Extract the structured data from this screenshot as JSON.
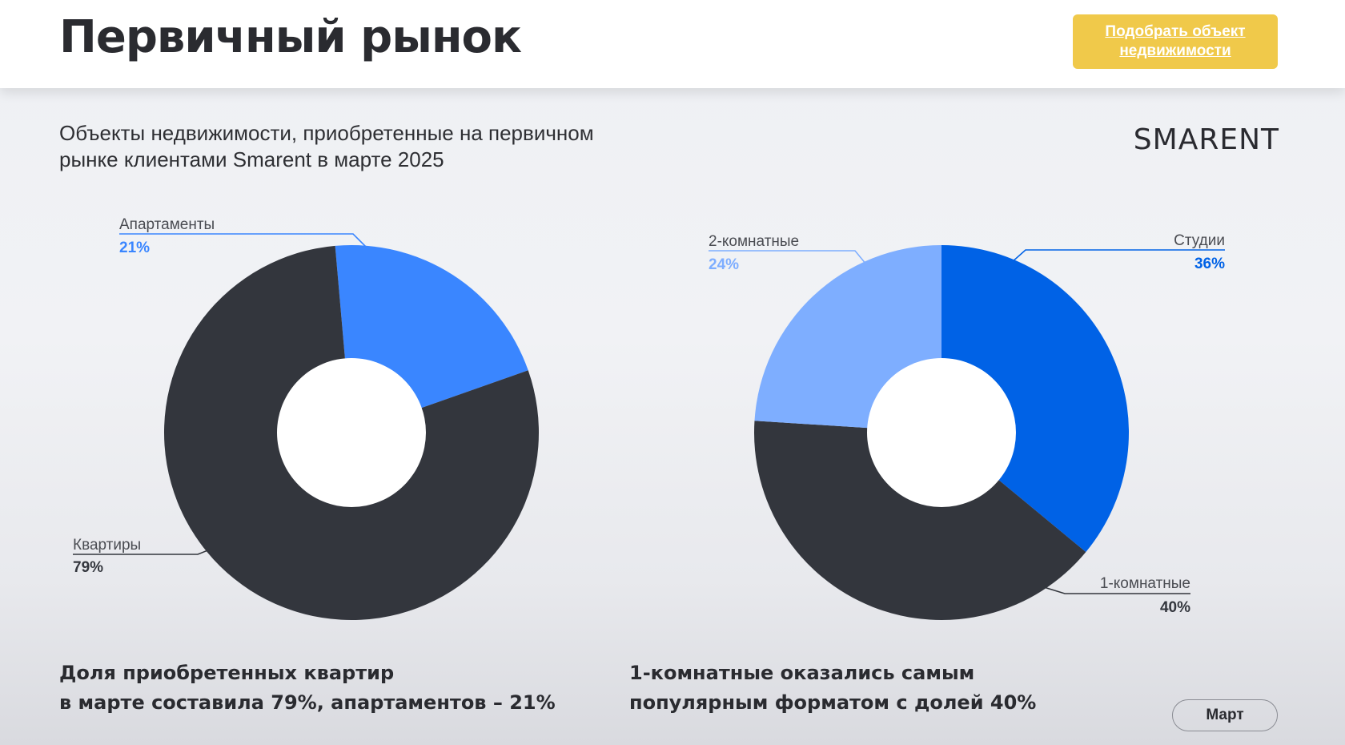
{
  "header": {
    "title": "Первичный рынок",
    "cta_line1": "Подобрать объект",
    "cta_line2": "недвижимости"
  },
  "subtitle_line1": "Объекты недвижимости, приобретенные на первичном",
  "subtitle_line2": "рынке клиентами Smarent  в марте 2025",
  "brand": "SMARENT",
  "captions": {
    "left_line1": "Доля приобретенных квартир",
    "left_line2": "в марте составила 79%, апартаментов – 21%",
    "right_line1": "1-комнатные оказались самым",
    "right_line2": "популярным форматом с долей 40%"
  },
  "month_button": "Март",
  "chart_data": [
    {
      "type": "pie",
      "donut": true,
      "slices": [
        {
          "label": "Апартаменты",
          "value": 21,
          "value_label": "21%",
          "color": "#3a86ff"
        },
        {
          "label": "Квартиры",
          "value": 79,
          "value_label": "79%",
          "color": "#33363d"
        }
      ]
    },
    {
      "type": "pie",
      "donut": true,
      "slices": [
        {
          "label": "Студии",
          "value": 36,
          "value_label": "36%",
          "color": "#0062e6"
        },
        {
          "label": "1-комнатные",
          "value": 40,
          "value_label": "40%",
          "color": "#33363d"
        },
        {
          "label": "2-комнатные",
          "value": 24,
          "value_label": "24%",
          "color": "#7eaeff"
        }
      ]
    }
  ],
  "colors": {
    "cta_bg": "#f0c94a",
    "dark": "#33363d",
    "label_text": "#4a4c52"
  }
}
